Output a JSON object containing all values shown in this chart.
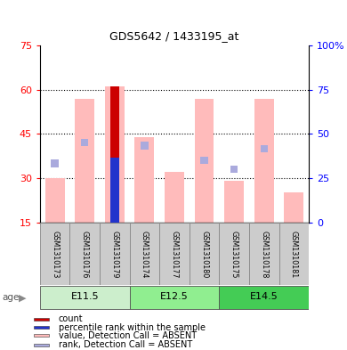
{
  "title": "GDS5642 / 1433195_at",
  "samples": [
    "GSM1310173",
    "GSM1310176",
    "GSM1310179",
    "GSM1310174",
    "GSM1310177",
    "GSM1310180",
    "GSM1310175",
    "GSM1310178",
    "GSM1310181"
  ],
  "groups": [
    {
      "label": "E11.5",
      "indices": [
        0,
        1,
        2
      ]
    },
    {
      "label": "E12.5",
      "indices": [
        3,
        4,
        5
      ]
    },
    {
      "label": "E14.5",
      "indices": [
        6,
        7,
        8
      ]
    }
  ],
  "value_absent": [
    30,
    57,
    61,
    44,
    32,
    57,
    29,
    57,
    25
  ],
  "rank_dot_y": [
    35,
    42,
    37,
    41,
    null,
    36,
    33,
    40,
    null
  ],
  "rank_dot_dark": [
    false,
    false,
    true,
    false,
    null,
    false,
    false,
    false,
    null
  ],
  "count_bar_idx": 2,
  "count_bar_val": 61,
  "count_bar_color": "#cc0000",
  "percentile_bar_val": 37,
  "percentile_bar_color": "#2233cc",
  "ylim_left": [
    15,
    75
  ],
  "ylim_right": [
    0,
    100
  ],
  "yticks_left": [
    15,
    30,
    45,
    60,
    75
  ],
  "ytick_labels_left": [
    "15",
    "30",
    "45",
    "60",
    "75"
  ],
  "yticks_right_vals": [
    0,
    25,
    50,
    75,
    100
  ],
  "ytick_labels_right": [
    "0",
    "25",
    "50",
    "75",
    "100%"
  ],
  "bar_bottom": 15,
  "absent_bar_color": "#ffbbbb",
  "rank_dot_light_color": "#aaaadd",
  "rank_dot_dark_color": "#2233cc",
  "grid_dotted_at": [
    30,
    45,
    60
  ],
  "age_label": "age",
  "group_colors": [
    "#bbeeaa",
    "#90ee90",
    "#44cc44"
  ],
  "group_xstarts": [
    -0.5,
    2.5,
    5.5
  ],
  "group_xends": [
    2.5,
    5.5,
    8.5
  ],
  "group_text_color": "black",
  "sample_box_color": "#cccccc",
  "sample_box_edge": "#888888",
  "legend_items": [
    {
      "color": "#cc0000",
      "label": "count"
    },
    {
      "color": "#2233cc",
      "label": "percentile rank within the sample"
    },
    {
      "color": "#ffbbbb",
      "label": "value, Detection Call = ABSENT"
    },
    {
      "color": "#aaaadd",
      "label": "rank, Detection Call = ABSENT"
    }
  ],
  "fig_bg": "#ffffff",
  "left_tick_color": "red",
  "right_tick_color": "blue"
}
